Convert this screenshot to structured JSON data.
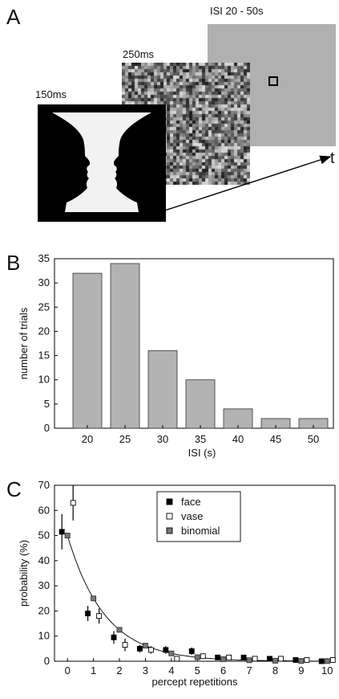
{
  "panels": {
    "a": {
      "label": "A",
      "stim1_label": "150ms",
      "stim2_label": "250ms",
      "stim3_label": "ISI 20 - 50s",
      "time_axis_label": "t"
    },
    "b": {
      "label": "B"
    },
    "c": {
      "label": "C"
    }
  },
  "colors": {
    "bar_fill": "#b3b3b3",
    "gray_screen": "#b0b0b0",
    "face_marker": "#000000",
    "vase_marker": "#ffffff",
    "binomial_marker": "#777777"
  },
  "chart_data": [
    {
      "type": "bar",
      "panel": "B",
      "categories": [
        "20",
        "25",
        "30",
        "35",
        "40",
        "45",
        "50"
      ],
      "values": [
        32,
        34,
        16,
        10,
        4,
        2,
        2
      ],
      "xlabel": "ISI (s)",
      "ylabel": "number of trials",
      "ylim": [
        0,
        35
      ],
      "yticks": [
        0,
        5,
        10,
        15,
        20,
        25,
        30,
        35
      ]
    },
    {
      "type": "scatter",
      "panel": "C",
      "xlabel": "percept repetitions",
      "ylabel": "probability (%)",
      "xlim": [
        -0.5,
        10.3
      ],
      "ylim": [
        0,
        70
      ],
      "xticks": [
        0,
        1,
        2,
        3,
        4,
        5,
        6,
        7,
        8,
        9,
        10
      ],
      "yticks": [
        0,
        10,
        20,
        30,
        40,
        50,
        60,
        70
      ],
      "legend_position": "top-right",
      "series": [
        {
          "name": "face",
          "marker": "filled-black-square",
          "x": [
            0,
            1,
            2,
            3,
            4,
            5,
            6,
            7,
            8,
            9,
            10
          ],
          "y": [
            51.5,
            19,
            9.5,
            5,
            4.5,
            4,
            1.5,
            1.5,
            1,
            0.5,
            0
          ],
          "err": [
            7,
            3,
            2.5,
            1.5,
            1.5,
            1.5,
            1,
            0.8,
            0.8,
            0.5,
            0.3
          ]
        },
        {
          "name": "vase",
          "marker": "open-square",
          "x": [
            0,
            1,
            2,
            3,
            4,
            5,
            6,
            7,
            8,
            9,
            10
          ],
          "y": [
            63,
            18,
            6.5,
            4.5,
            1,
            2,
            1.5,
            1,
            1,
            0.5,
            0.5
          ],
          "err": [
            7,
            3,
            2.5,
            1.5,
            1,
            1,
            0.8,
            0.8,
            0.8,
            0.5,
            0.3
          ]
        },
        {
          "name": "binomial",
          "marker": "gray-square",
          "x": [
            0,
            1,
            2,
            3,
            4,
            5,
            6,
            7,
            8,
            9,
            10
          ],
          "y": [
            50,
            25,
            12.5,
            6.2,
            3.1,
            1.6,
            0.8,
            0.4,
            0.2,
            0.1,
            0.05
          ],
          "err": []
        }
      ]
    }
  ]
}
